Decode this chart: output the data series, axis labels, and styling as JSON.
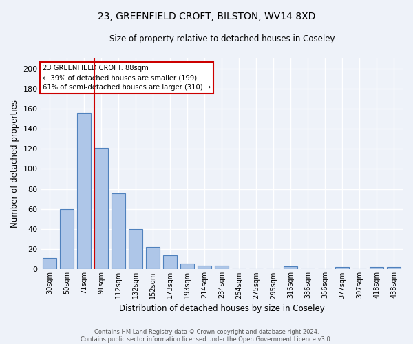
{
  "title1": "23, GREENFIELD CROFT, BILSTON, WV14 8XD",
  "title2": "Size of property relative to detached houses in Coseley",
  "xlabel": "Distribution of detached houses by size in Coseley",
  "ylabel": "Number of detached properties",
  "categories": [
    "30sqm",
    "50sqm",
    "71sqm",
    "91sqm",
    "112sqm",
    "132sqm",
    "152sqm",
    "173sqm",
    "193sqm",
    "214sqm",
    "234sqm",
    "254sqm",
    "275sqm",
    "295sqm",
    "316sqm",
    "336sqm",
    "356sqm",
    "377sqm",
    "397sqm",
    "418sqm",
    "438sqm"
  ],
  "values": [
    11,
    60,
    156,
    121,
    76,
    40,
    22,
    14,
    6,
    4,
    4,
    0,
    0,
    0,
    3,
    0,
    0,
    2,
    0,
    2,
    2
  ],
  "bar_color": "#aec6e8",
  "bar_edge_color": "#4f81bd",
  "vline_color": "#cc0000",
  "vline_x_index": 3,
  "ylim": [
    0,
    210
  ],
  "yticks": [
    0,
    20,
    40,
    60,
    80,
    100,
    120,
    140,
    160,
    180,
    200
  ],
  "annotation_line1": "23 GREENFIELD CROFT: 88sqm",
  "annotation_line2": "← 39% of detached houses are smaller (199)",
  "annotation_line3": "61% of semi-detached houses are larger (310) →",
  "annotation_box_color": "#ffffff",
  "annotation_box_edge": "#cc0000",
  "footer1": "Contains HM Land Registry data © Crown copyright and database right 2024.",
  "footer2": "Contains public sector information licensed under the Open Government Licence v3.0.",
  "background_color": "#eef2f9",
  "grid_color": "#ffffff",
  "title1_fontsize": 10,
  "title2_fontsize": 9
}
